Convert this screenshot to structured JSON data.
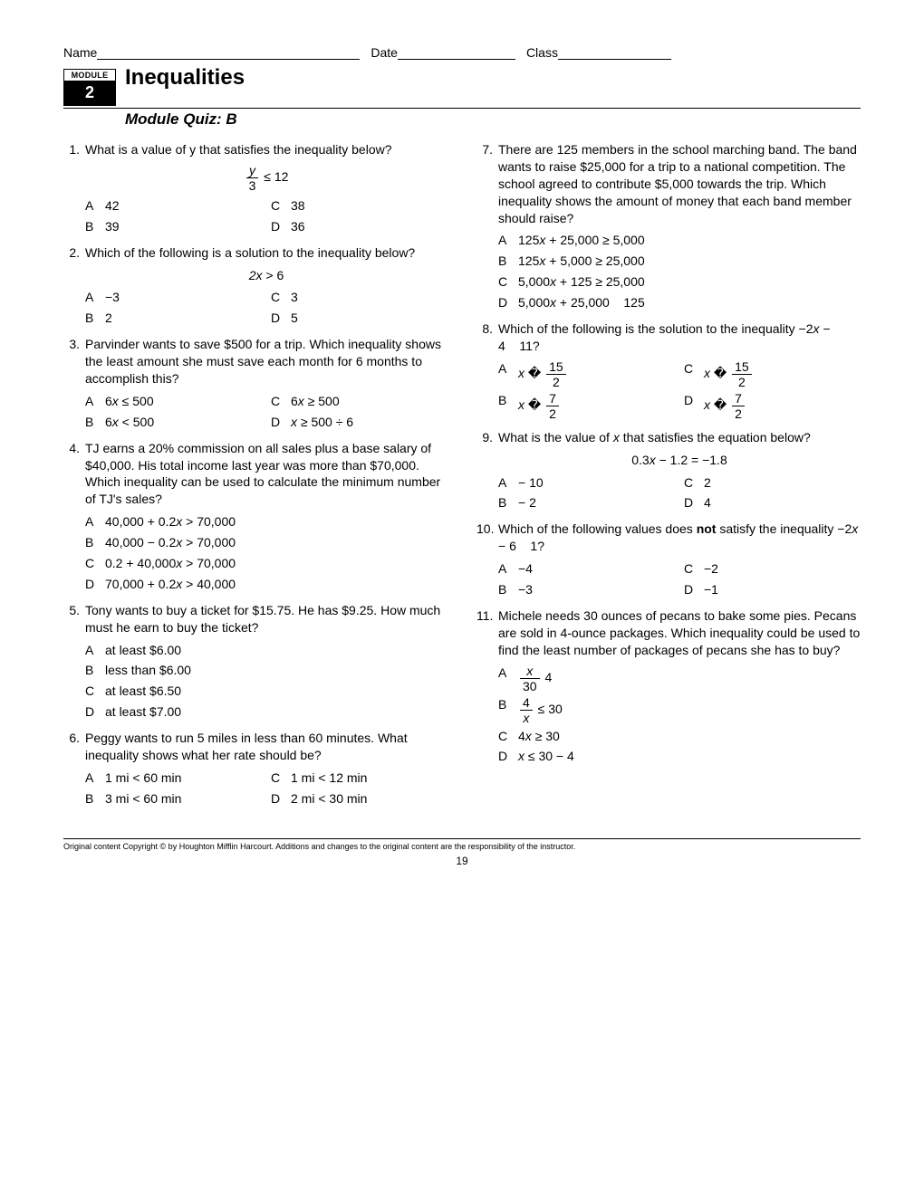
{
  "header": {
    "name_label": "Name",
    "date_label": "Date",
    "class_label": "Class",
    "name_line_width": 290,
    "date_line_width": 130,
    "class_line_width": 125
  },
  "module": {
    "box_label": "MODULE",
    "number": "2",
    "title": "Inequalities",
    "subtitle": "Module Quiz: B"
  },
  "q1": {
    "num": "1.",
    "text": "What is a value of y that satisfies the inequality below?",
    "A": "42",
    "B": "39",
    "C": "38",
    "D": "36"
  },
  "q2": {
    "num": "2.",
    "text": "Which of the following is a solution to the inequality below?",
    "expr_lhs": "2x",
    "expr_op": ">",
    "expr_rhs": "6",
    "A": "−3",
    "B": "2",
    "C": "3",
    "D": "5"
  },
  "q3": {
    "num": "3.",
    "text": "Parvinder wants to save $500 for a trip. Which inequality shows the least amount she must save each month for 6 months to accomplish this?",
    "A": "6x ≤ 500",
    "B": "6x < 500",
    "C": "6x ≥ 500",
    "D": "x ≥ 500 ÷ 6"
  },
  "q4": {
    "num": "4.",
    "text": "TJ earns a 20% commission on all sales plus a base salary of $40,000. His total income last year was more than $70,000. Which inequality can be used to calculate the minimum number of TJ's sales?",
    "A": "40,000 + 0.2x > 70,000",
    "B": "40,000 − 0.2x > 70,000",
    "C": "0.2 + 40,000x > 70,000",
    "D": "70,000 + 0.2x > 40,000"
  },
  "q5": {
    "num": "5.",
    "text": "Tony wants to buy a ticket for $15.75. He has $9.25. How much must he earn to buy the ticket?",
    "A": "at least $6.00",
    "B": "less than $6.00",
    "C": "at least $6.50",
    "D": "at least $7.00"
  },
  "q6": {
    "num": "6.",
    "text": "Peggy wants to run 5 miles in less than 60 minutes. What inequality shows what her rate should be?",
    "A": "1 mi < 60 min",
    "B": "3 mi < 60 min",
    "C": "1 mi < 12 min",
    "D": "2 mi < 30 min"
  },
  "q7": {
    "num": "7.",
    "text": "There are 125 members in the school marching band. The band wants to raise $25,000 for a trip to a national competition. The school agreed to contribute $5,000 towards the trip. Which inequality shows the amount of money that each band member should raise?",
    "A": "125x + 25,000 ≥ 5,000",
    "B": "125x + 5,000 ≥ 25,000",
    "C": "5,000x + 125 ≥ 25,000",
    "D": "5,000x + 25,000    125"
  },
  "q8": {
    "num": "8.",
    "text": "Which of the following is the solution to the inequality −2x − 4    11?",
    "A_pre": "x �",
    "A_num": "15",
    "A_den": "2",
    "B_pre": "x �",
    "B_num": "7",
    "B_den": "2",
    "C_pre": "x �",
    "C_num": "15",
    "C_den": "2",
    "D_pre": "x �",
    "D_num": "7",
    "D_den": "2"
  },
  "q9": {
    "num": "9.",
    "text": "What is the value of x that satisfies the equation below?",
    "expr": "0.3x − 1.2 = −1.8",
    "A": "− 10",
    "B": "− 2",
    "C": "2",
    "D": "4"
  },
  "q10": {
    "num": "10.",
    "text_pre": "Which of the following values does ",
    "text_bold": "not",
    "text_post": " satisfy the inequality −2x − 6    1?",
    "A": "−4",
    "B": "−3",
    "C": "−2",
    "D": "−1"
  },
  "q11": {
    "num": "11.",
    "text": "Michele needs 30 ounces of pecans to bake some pies. Pecans are sold in 4-ounce packages. Which inequality could be used to find the least number of packages of pecans she has to buy?",
    "A_num": "x",
    "A_den": "30",
    "A_post": "    4",
    "B_num": "4",
    "B_den": "x",
    "B_post": " ≤ 30",
    "C": "4x ≥ 30",
    "D": "x ≤ 30 − 4"
  },
  "footer": {
    "copyright": "Original content Copyright © by Houghton Mifflin Harcourt. Additions and changes to the original content are the responsibility of the instructor.",
    "page": "19"
  },
  "labels": {
    "A": "A",
    "B": "B",
    "C": "C",
    "D": "D"
  }
}
